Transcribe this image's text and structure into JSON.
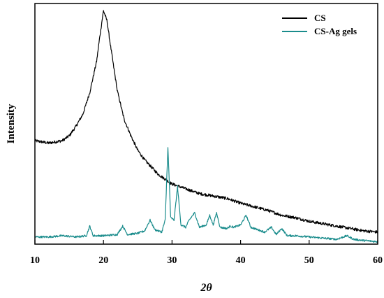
{
  "chart_data": {
    "type": "line",
    "title": "",
    "xlabel": "2θ",
    "ylabel": "Intensity",
    "xlim": [
      10,
      60
    ],
    "x_ticks": [
      10,
      20,
      30,
      40,
      50,
      60
    ],
    "y_ticks_shown": false,
    "grid": false,
    "legend_position": "top-right",
    "series": [
      {
        "name": "CS",
        "color": "#000000",
        "x": [
          10,
          12,
          14,
          15,
          16,
          17,
          18,
          19,
          19.5,
          20,
          20.5,
          21,
          22,
          23,
          24,
          25,
          26,
          27,
          28,
          30,
          32,
          34,
          36,
          38,
          40,
          42,
          44,
          46,
          48,
          50,
          52,
          54,
          56,
          58,
          60
        ],
        "y": [
          0.43,
          0.42,
          0.43,
          0.45,
          0.49,
          0.54,
          0.63,
          0.76,
          0.87,
          0.97,
          0.93,
          0.83,
          0.64,
          0.52,
          0.45,
          0.39,
          0.35,
          0.32,
          0.29,
          0.25,
          0.23,
          0.21,
          0.2,
          0.19,
          0.17,
          0.155,
          0.14,
          0.12,
          0.11,
          0.095,
          0.085,
          0.075,
          0.065,
          0.055,
          0.05
        ]
      },
      {
        "name": "CS-Ag gels",
        "color": "#1a8c8c",
        "x": [
          10,
          12,
          14,
          16,
          17.5,
          18,
          18.5,
          20,
          22,
          22.8,
          23.5,
          25,
          26,
          26.8,
          27.5,
          28.5,
          29,
          29.4,
          29.8,
          30.3,
          30.8,
          31.3,
          32,
          32.5,
          33.3,
          34,
          35,
          35.5,
          36,
          36.5,
          37,
          38,
          38.5,
          39,
          40,
          40.8,
          41.5,
          42.5,
          43.5,
          44.5,
          45.2,
          46,
          46.8,
          48,
          50,
          52,
          54,
          55.5,
          56.5,
          58,
          60
        ],
        "y": [
          0.03,
          0.03,
          0.035,
          0.03,
          0.035,
          0.075,
          0.035,
          0.035,
          0.04,
          0.075,
          0.04,
          0.045,
          0.055,
          0.1,
          0.06,
          0.05,
          0.1,
          0.4,
          0.11,
          0.1,
          0.24,
          0.08,
          0.07,
          0.1,
          0.13,
          0.07,
          0.08,
          0.12,
          0.08,
          0.13,
          0.07,
          0.065,
          0.075,
          0.07,
          0.08,
          0.12,
          0.07,
          0.06,
          0.05,
          0.07,
          0.04,
          0.065,
          0.035,
          0.035,
          0.03,
          0.025,
          0.02,
          0.035,
          0.02,
          0.015,
          0.01
        ]
      }
    ]
  }
}
